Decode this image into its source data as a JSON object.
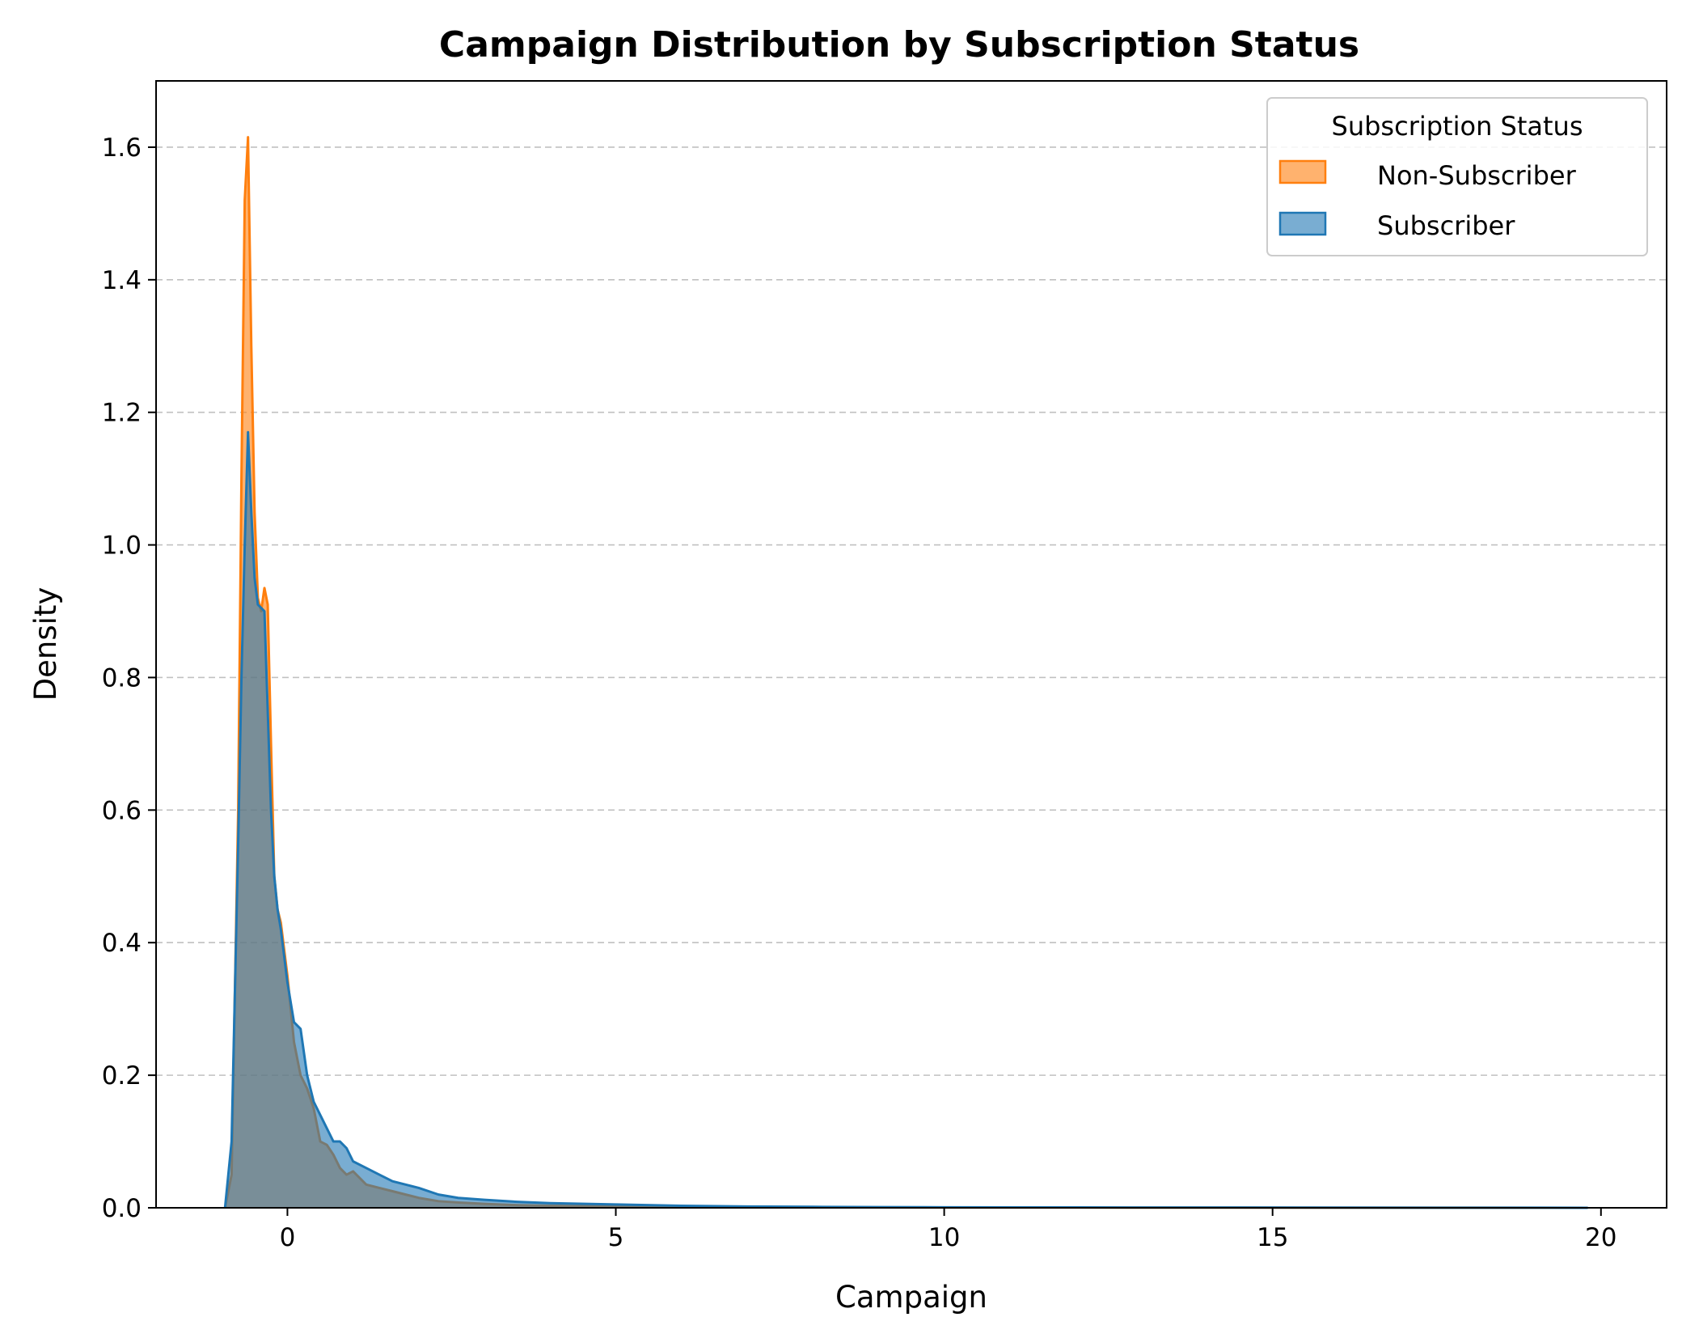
{
  "chart_data": {
    "type": "area",
    "title": "Campaign Distribution by Subscription Status",
    "xlabel": "Campaign",
    "ylabel": "Density",
    "xlim": [
      -2,
      21
    ],
    "ylim": [
      0,
      1.7
    ],
    "xticks": [
      0,
      5,
      10,
      15,
      20
    ],
    "yticks": [
      0.0,
      0.2,
      0.4,
      0.6,
      0.8,
      1.0,
      1.2,
      1.4,
      1.6
    ],
    "xtick_labels": [
      "0",
      "5",
      "10",
      "15",
      "20"
    ],
    "ytick_labels": [
      "0.0",
      "0.2",
      "0.4",
      "0.6",
      "0.8",
      "1.0",
      "1.2",
      "1.4",
      "1.6"
    ],
    "grid": "y-dashed",
    "legend": {
      "title": "Subscription Status",
      "placement": "top-right"
    },
    "series": [
      {
        "name": "Non-Subscriber",
        "color": "#ff7f0e",
        "x": [
          -0.95,
          -0.85,
          -0.75,
          -0.7,
          -0.65,
          -0.6,
          -0.55,
          -0.5,
          -0.45,
          -0.4,
          -0.35,
          -0.3,
          -0.25,
          -0.2,
          -0.15,
          -0.1,
          0.0,
          0.1,
          0.2,
          0.3,
          0.4,
          0.5,
          0.6,
          0.7,
          0.8,
          0.9,
          1.0,
          1.2,
          1.4,
          1.6,
          1.8,
          2.0,
          2.3,
          2.6,
          3.0,
          3.5,
          4.0,
          5.0,
          6.0,
          7.0,
          8.0,
          9.0,
          10.0,
          12.0,
          14.0,
          16.0,
          18.0,
          19.8
        ],
        "y": [
          0.0,
          0.05,
          0.6,
          1.1,
          1.52,
          1.615,
          1.3,
          1.05,
          0.92,
          0.9,
          0.935,
          0.91,
          0.7,
          0.5,
          0.45,
          0.43,
          0.35,
          0.25,
          0.2,
          0.18,
          0.15,
          0.1,
          0.095,
          0.08,
          0.06,
          0.05,
          0.055,
          0.035,
          0.03,
          0.025,
          0.02,
          0.015,
          0.01,
          0.008,
          0.006,
          0.004,
          0.003,
          0.002,
          0.0015,
          0.001,
          0.0008,
          0.0006,
          0.0005,
          0.0004,
          0.0003,
          0.0002,
          0.0001,
          0.0
        ]
      },
      {
        "name": "Subscriber",
        "color": "#1f77b4",
        "x": [
          -0.95,
          -0.85,
          -0.75,
          -0.7,
          -0.65,
          -0.6,
          -0.55,
          -0.5,
          -0.45,
          -0.4,
          -0.35,
          -0.3,
          -0.25,
          -0.2,
          -0.15,
          -0.1,
          0.0,
          0.1,
          0.2,
          0.3,
          0.4,
          0.5,
          0.6,
          0.7,
          0.8,
          0.9,
          1.0,
          1.2,
          1.4,
          1.6,
          1.8,
          2.0,
          2.3,
          2.6,
          3.0,
          3.5,
          4.0,
          5.0,
          6.0,
          7.0,
          8.0,
          9.0,
          10.0,
          12.0,
          14.0,
          16.0,
          18.0,
          19.8
        ],
        "y": [
          0.0,
          0.1,
          0.55,
          0.8,
          1.0,
          1.17,
          1.05,
          0.95,
          0.91,
          0.905,
          0.9,
          0.75,
          0.6,
          0.5,
          0.45,
          0.42,
          0.34,
          0.28,
          0.27,
          0.2,
          0.16,
          0.14,
          0.12,
          0.1,
          0.1,
          0.09,
          0.07,
          0.06,
          0.05,
          0.04,
          0.035,
          0.03,
          0.02,
          0.015,
          0.012,
          0.009,
          0.007,
          0.005,
          0.003,
          0.002,
          0.0015,
          0.001,
          0.0008,
          0.0006,
          0.0004,
          0.0003,
          0.0002,
          0.0
        ]
      }
    ]
  }
}
